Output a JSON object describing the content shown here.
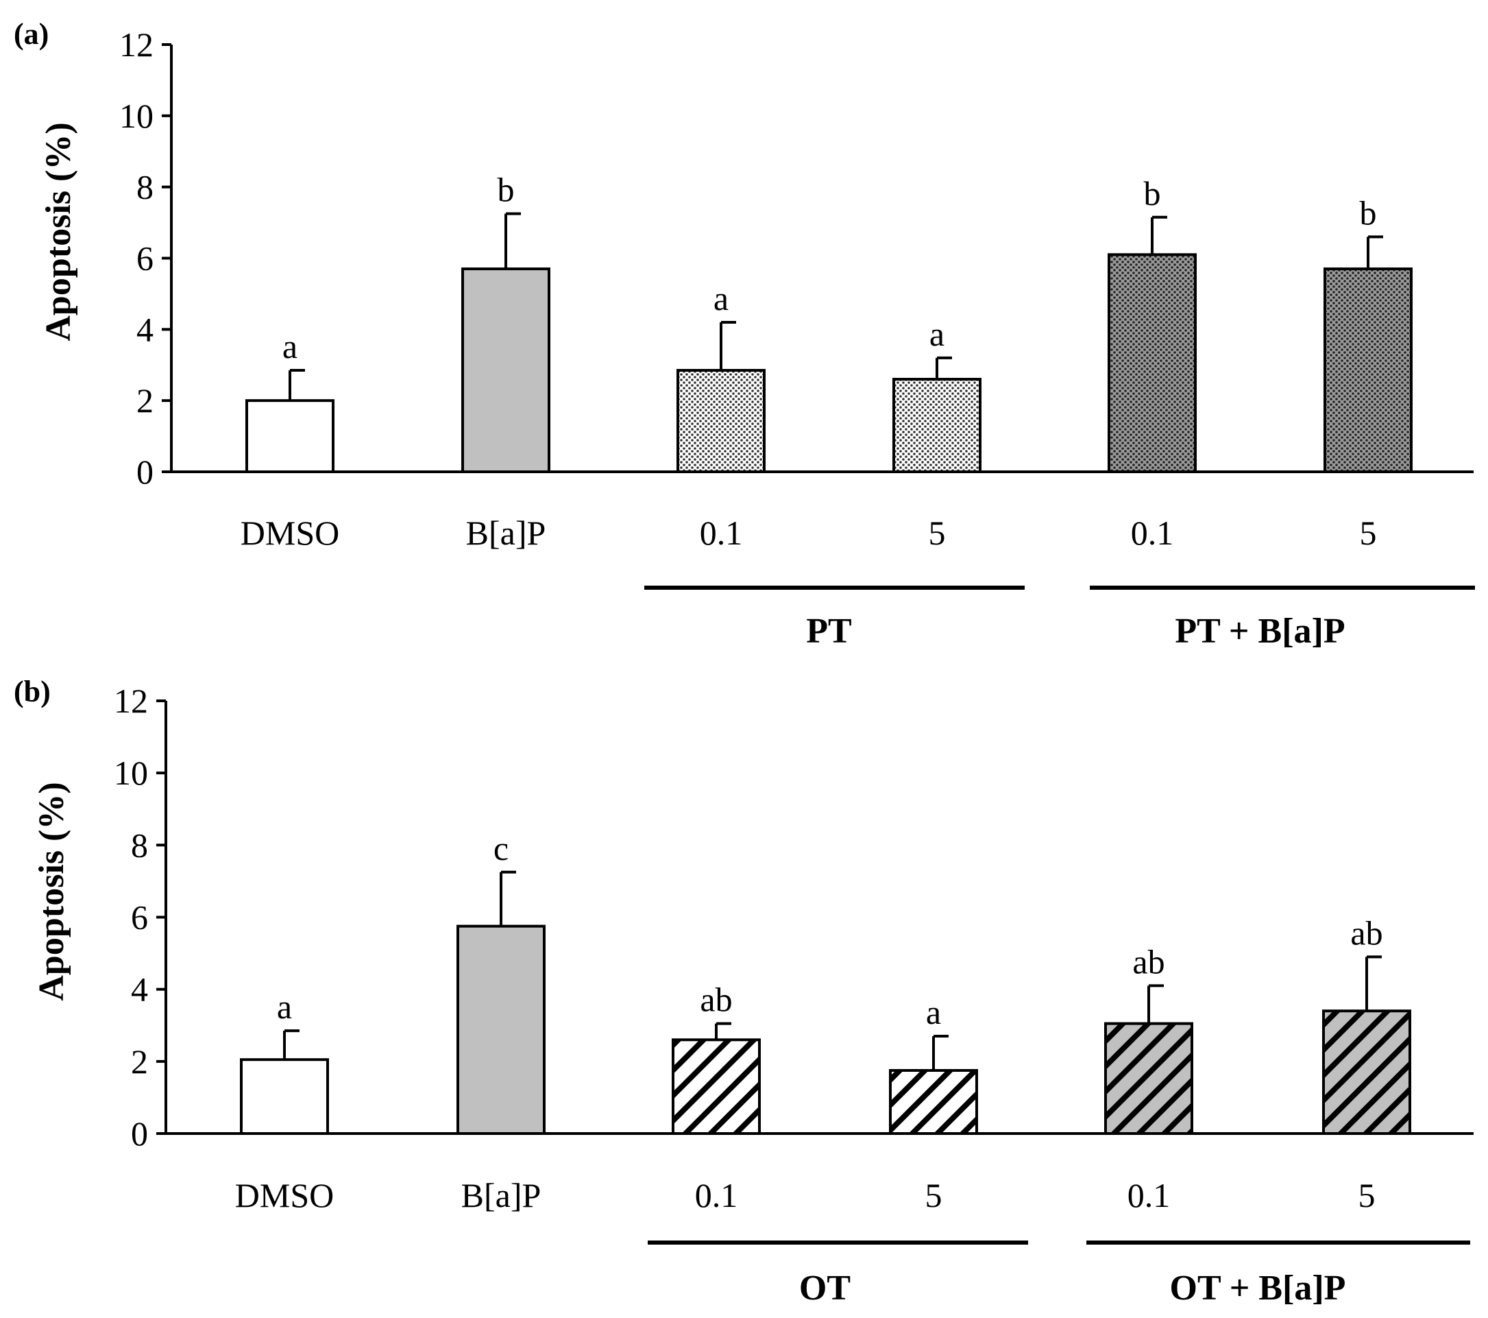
{
  "chart_data": [
    {
      "type": "bar",
      "panel_label": "(a)",
      "ylabel": "Apoptosis (%)",
      "xlabel": "",
      "ylim": [
        0,
        12
      ],
      "yticks": [
        "0",
        "2",
        "4",
        "6",
        "8",
        "10",
        "12"
      ],
      "categories": [
        "DMSO",
        "B[a]P",
        "0.1",
        "5",
        "0.1",
        "5"
      ],
      "values": [
        2.0,
        5.7,
        2.85,
        2.6,
        6.1,
        5.7
      ],
      "errors": [
        0.85,
        1.55,
        1.35,
        0.6,
        1.05,
        0.9
      ],
      "significance": [
        "a",
        "b",
        "a",
        "a",
        "b",
        "b"
      ],
      "fills": [
        "white",
        "gray",
        "dots-light",
        "dots-light",
        "dots-dark",
        "dots-dark"
      ],
      "groups": [
        {
          "label": "PT",
          "members": [
            2,
            3
          ]
        },
        {
          "label": "PT + B[a]P",
          "members": [
            4,
            5
          ]
        }
      ]
    },
    {
      "type": "bar",
      "panel_label": "(b)",
      "ylabel": "Apoptosis (%)",
      "xlabel": "",
      "ylim": [
        0,
        12
      ],
      "yticks": [
        "0",
        "2",
        "4",
        "6",
        "8",
        "10",
        "12"
      ],
      "categories": [
        "DMSO",
        "B[a]P",
        "0.1",
        "5",
        "0.1",
        "5"
      ],
      "values": [
        2.05,
        5.75,
        2.6,
        1.75,
        3.05,
        3.4
      ],
      "errors": [
        0.8,
        1.5,
        0.45,
        0.95,
        1.05,
        1.5
      ],
      "significance": [
        "a",
        "c",
        "ab",
        "a",
        "ab",
        "ab"
      ],
      "fills": [
        "white",
        "gray",
        "hatch-white",
        "hatch-white",
        "hatch-gray",
        "hatch-gray"
      ],
      "groups": [
        {
          "label": "OT",
          "members": [
            2,
            3
          ]
        },
        {
          "label": "OT + B[a]P",
          "members": [
            4,
            5
          ]
        }
      ]
    }
  ],
  "colors": {
    "gray_fill": "#c0c0c0",
    "axis": "#000000"
  }
}
